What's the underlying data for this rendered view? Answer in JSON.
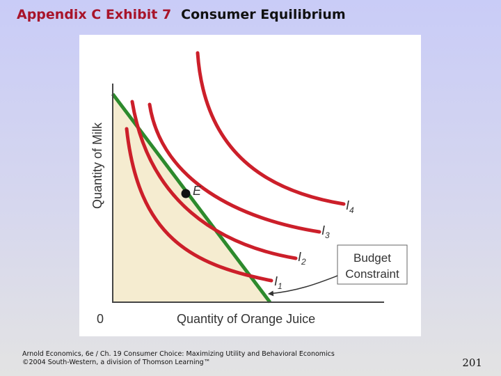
{
  "slide": {
    "exhibit": "Appendix C Exhibit 7",
    "title": "Consumer Equilibrium"
  },
  "diagram": {
    "y_axis_label": "Quantity of Milk",
    "x_axis_label": "Quantity of Orange Juice",
    "origin_label": "0",
    "equilibrium_label": "E",
    "curves": [
      {
        "letter": "I",
        "sub": "1"
      },
      {
        "letter": "I",
        "sub": "2"
      },
      {
        "letter": "I",
        "sub": "3"
      },
      {
        "letter": "I",
        "sub": "4"
      }
    ],
    "budget_box": {
      "line1": "Budget",
      "line2": "Constraint"
    },
    "colors": {
      "indifference_curve": "#cc1f2a",
      "budget_line": "#2d8a2d",
      "feasible_area": "#f5ecd0",
      "equilibrium_point": "#111111"
    }
  },
  "footer": {
    "line1": "Arnold Economics, 6e / Ch. 19 Consumer Choice: Maximizing Utility and Behavioral Economics",
    "line2": "©2004 South-Western, a division of Thomson Learning™",
    "page_number": "201"
  }
}
